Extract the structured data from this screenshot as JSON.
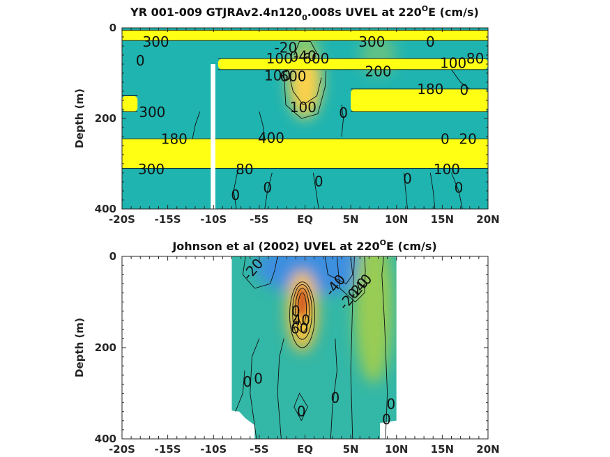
{
  "chart_data": [
    {
      "type": "heatmap",
      "title": "YR 001-009 GTJRAv2.4n120",
      "title_sub": "0",
      "title_mid": ".008s UVEL at 220",
      "title_sup": "O",
      "title_end": "E (cm/s)",
      "ylabel": "Depth (m)",
      "ylim": [
        400,
        0
      ],
      "xlim": [
        -20,
        20
      ],
      "x_ticks": [
        -20,
        -15,
        -10,
        -5,
        0,
        5,
        10,
        15,
        20
      ],
      "x_tick_labels": [
        "-20S",
        "-15S",
        "-10S",
        "-5S",
        "EQ",
        "5N",
        "10N",
        "15N",
        "20N"
      ],
      "y_ticks": [
        0,
        200,
        400
      ],
      "y_tick_labels": [
        "0",
        "200",
        "400"
      ],
      "colors": {
        "background": "#1fb4b0",
        "band": "#ffff14",
        "gap": "#ffffff",
        "core": "#fbd14b",
        "weak": "#8cca6a"
      },
      "bands": [
        {
          "lat_from": -20,
          "lat_to": 20,
          "depth_from": 5,
          "depth_to": 28
        },
        {
          "lat_from": -9.5,
          "lat_to": 20,
          "depth_from": 68,
          "depth_to": 92
        },
        {
          "lat_from": -20,
          "lat_to": -18.3,
          "depth_from": 150,
          "depth_to": 185
        },
        {
          "lat_from": 5,
          "lat_to": 20,
          "depth_from": 135,
          "depth_to": 185
        },
        {
          "lat_from": -20,
          "lat_to": 20,
          "depth_from": 245,
          "depth_to": 310
        }
      ],
      "gap": {
        "lat_from": -10.3,
        "lat_to": -9.8,
        "depth_from": 80,
        "depth_to": 400
      },
      "contour_labels": [
        {
          "text": "300",
          "lat": -16.3,
          "depth": 31
        },
        {
          "text": "0",
          "lat": -18,
          "depth": 72
        },
        {
          "text": "-20",
          "lat": -2.1,
          "depth": 44
        },
        {
          "text": "100",
          "lat": -2.8,
          "depth": 68
        },
        {
          "text": "0",
          "lat": -1.2,
          "depth": 64
        },
        {
          "text": "-40",
          "lat": 0,
          "depth": 62
        },
        {
          "text": "600",
          "lat": 1.2,
          "depth": 68
        },
        {
          "text": "300",
          "lat": 7.3,
          "depth": 31
        },
        {
          "text": "0",
          "lat": 13.7,
          "depth": 31
        },
        {
          "text": "100",
          "lat": 16.2,
          "depth": 78
        },
        {
          "text": "80",
          "lat": 18.6,
          "depth": 68
        },
        {
          "text": "100",
          "lat": -3,
          "depth": 105
        },
        {
          "text": "600",
          "lat": -1.3,
          "depth": 107
        },
        {
          "text": "200",
          "lat": 8,
          "depth": 96
        },
        {
          "text": "180",
          "lat": 13.7,
          "depth": 135
        },
        {
          "text": "0",
          "lat": 17.4,
          "depth": 137
        },
        {
          "text": "100",
          "lat": -0.2,
          "depth": 175
        },
        {
          "text": "0",
          "lat": 4.2,
          "depth": 188
        },
        {
          "text": "300",
          "lat": -16.7,
          "depth": 186
        },
        {
          "text": "180",
          "lat": -14.3,
          "depth": 245
        },
        {
          "text": "400",
          "lat": -3.7,
          "depth": 243
        },
        {
          "text": "0",
          "lat": 15.3,
          "depth": 245
        },
        {
          "text": "20",
          "lat": 17.8,
          "depth": 245
        },
        {
          "text": "300",
          "lat": -16.8,
          "depth": 312
        },
        {
          "text": "80",
          "lat": -6.6,
          "depth": 312
        },
        {
          "text": "100",
          "lat": 15.5,
          "depth": 312
        },
        {
          "text": "0",
          "lat": -7.6,
          "depth": 369
        },
        {
          "text": "0",
          "lat": -4.1,
          "depth": 353
        },
        {
          "text": "0",
          "lat": 1.5,
          "depth": 339
        },
        {
          "text": "0",
          "lat": 11.2,
          "depth": 333
        },
        {
          "text": "0",
          "lat": 16.8,
          "depth": 353
        }
      ]
    },
    {
      "type": "heatmap",
      "title": "Johnson et al (2002) UVEL at 220",
      "title_sup": "O",
      "title_end": "E (cm/s)",
      "ylabel": "Depth (m)",
      "ylim": [
        400,
        0
      ],
      "xlim": [
        -20,
        20
      ],
      "x_ticks": [
        -20,
        -15,
        -10,
        -5,
        0,
        5,
        10,
        15,
        20
      ],
      "x_tick_labels": [
        "-20S",
        "-15S",
        "-10S",
        "-5S",
        "EQ",
        "5N",
        "10N",
        "15N",
        "20N"
      ],
      "y_ticks": [
        0,
        200,
        400
      ],
      "y_tick_labels": [
        "0",
        "200",
        "400"
      ],
      "data_extent": {
        "lat_from": -8,
        "lat_to": 10
      },
      "colors": {
        "background": "#33b7a6",
        "west": "#3d8fe0",
        "east_jet": "#98cc55",
        "core": "#f7c23c",
        "core_center": "#d05a22"
      },
      "contour_labels": [
        {
          "text": "-20",
          "lat": -5.7,
          "depth": 28
        },
        {
          "text": "-40",
          "lat": 3.3,
          "depth": 63
        },
        {
          "text": "-20",
          "lat": 4.8,
          "depth": 93
        },
        {
          "text": "-40",
          "lat": 6.2,
          "depth": 62
        },
        {
          "text": "-20",
          "lat": 5.8,
          "depth": 70
        },
        {
          "text": "0",
          "lat": -1,
          "depth": 120
        },
        {
          "text": "60",
          "lat": -0.6,
          "depth": 158
        },
        {
          "text": "40",
          "lat": -0.4,
          "depth": 140
        },
        {
          "text": "0",
          "lat": -6.3,
          "depth": 275
        },
        {
          "text": "0",
          "lat": -5.1,
          "depth": 268
        },
        {
          "text": "0",
          "lat": 3.3,
          "depth": 310
        },
        {
          "text": "0",
          "lat": -0.4,
          "depth": 340
        },
        {
          "text": "0",
          "lat": 9.4,
          "depth": 324
        },
        {
          "text": "0",
          "lat": 8.9,
          "depth": 357
        }
      ]
    }
  ]
}
